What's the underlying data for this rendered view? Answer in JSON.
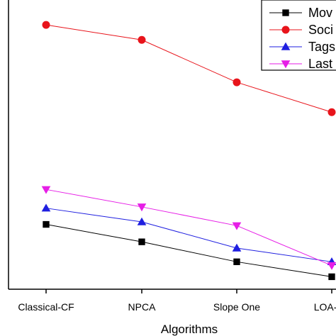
{
  "chart_data": {
    "type": "line",
    "categories": [
      "Classical-CF",
      "NPCA",
      "Slope One",
      "LOA-FS"
    ],
    "xlabel": "Algorithms",
    "ylabel": "",
    "title": "",
    "legend_position": "top-right",
    "series": [
      {
        "name": "Mov",
        "color": "#000000",
        "marker": "square",
        "values": [
          4.2,
          3.5,
          2.7,
          2.1
        ]
      },
      {
        "name": "Soci",
        "color": "#e8141b",
        "marker": "circle",
        "values": [
          12.2,
          11.6,
          9.9,
          8.7
        ]
      },
      {
        "name": "Tags",
        "color": "#1f1fe0",
        "marker": "triangle-up",
        "values": [
          4.85,
          4.3,
          3.25,
          2.7
        ]
      },
      {
        "name": "Last",
        "color": "#e61ee6",
        "marker": "triangle-down",
        "values": [
          5.6,
          4.9,
          4.15,
          2.55
        ]
      }
    ],
    "ylim": [
      1.6,
      13.2
    ],
    "grid": false
  }
}
